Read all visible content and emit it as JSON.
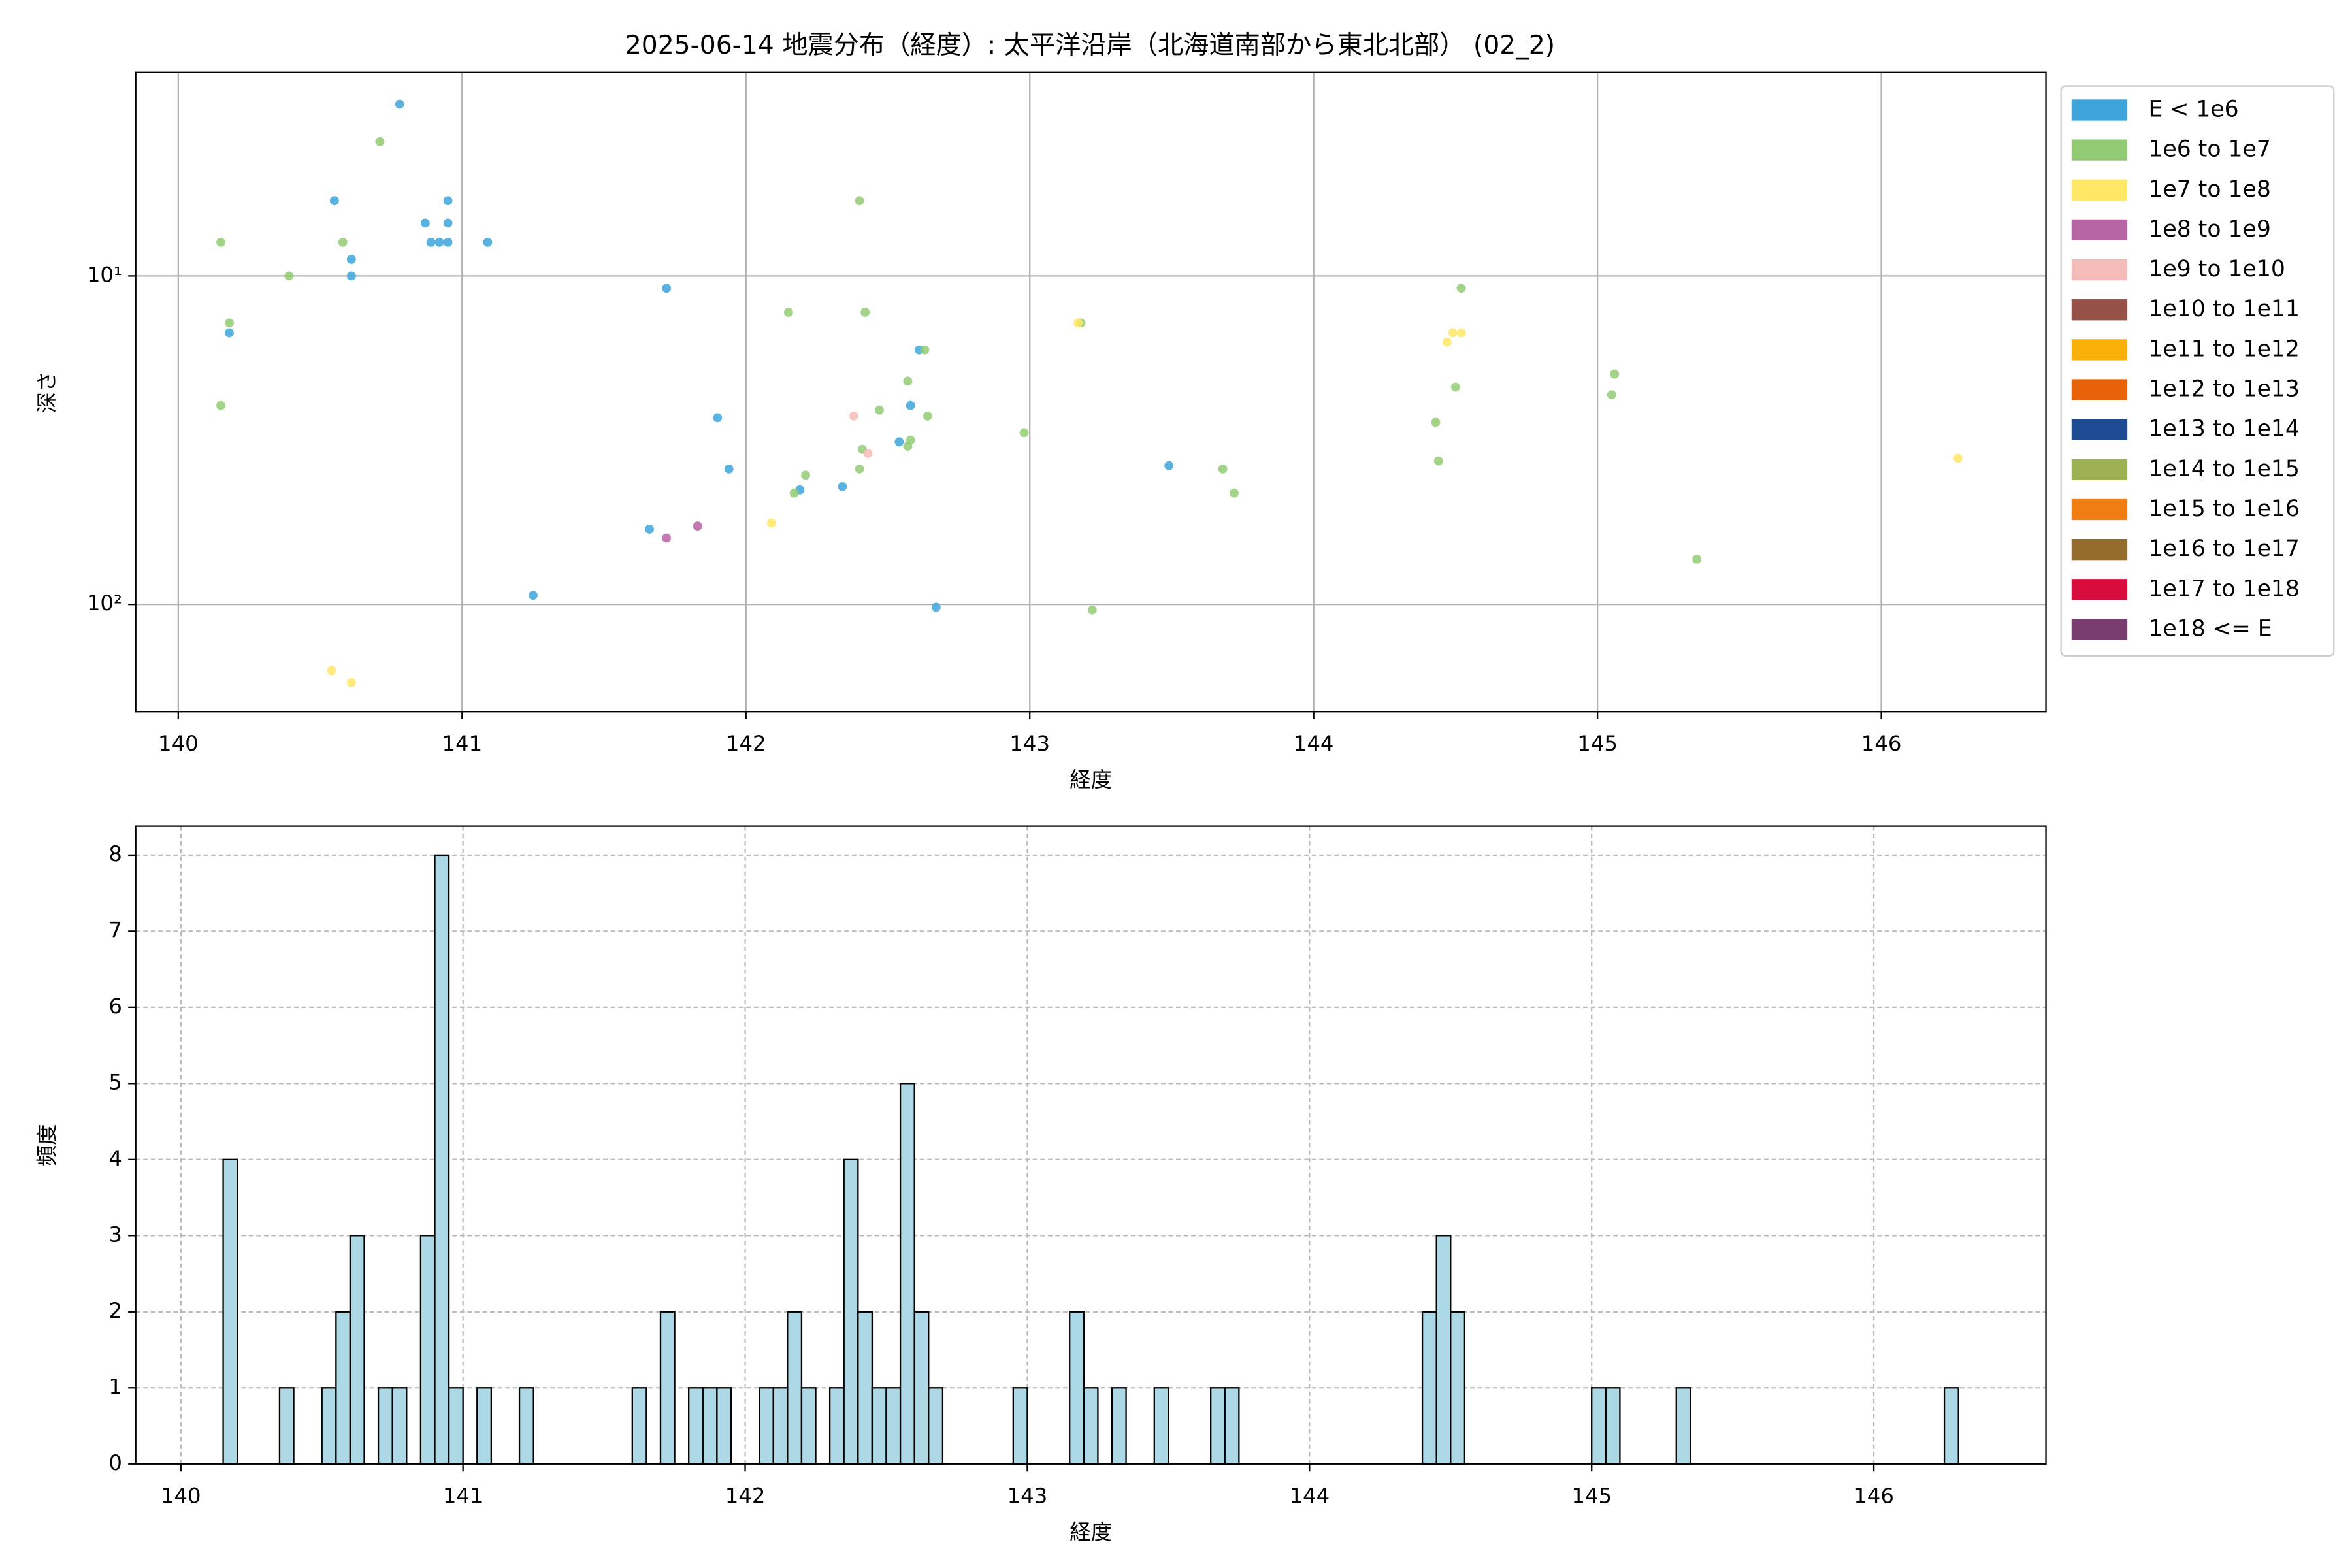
{
  "chart_data": [
    {
      "type": "scatter",
      "title": "2025-06-14 地震分布（経度）: 太平洋沿岸（北海道南部から東北北部） (02_2)",
      "x_label": "経度",
      "y_label": "深さ",
      "xlim": [
        139.85,
        146.58
      ],
      "xticks": [
        140,
        141,
        142,
        143,
        144,
        145,
        146
      ],
      "ylim": [
        2.4,
        212
      ],
      "yscale": "log",
      "y_inverted": true,
      "yticks": [
        {
          "value": 10,
          "label": "10¹"
        },
        {
          "value": 100,
          "label": "10²"
        }
      ],
      "grid": true,
      "grid_style": "solid",
      "legend": "outside-right",
      "series": [
        {
          "name": "E < 1e6",
          "color": "#3da4dc",
          "x": [
            140.78,
            140.55,
            140.87,
            140.89,
            140.92,
            140.95,
            140.95,
            140.95,
            141.09,
            140.61,
            140.61,
            141.72,
            140.18,
            141.9,
            141.94,
            142.58,
            142.61,
            142.54,
            142.19,
            142.34,
            141.66,
            141.25,
            143.49,
            142.67
          ],
          "values": [
            3.0,
            5.9,
            6.9,
            7.9,
            7.9,
            6.9,
            5.9,
            7.9,
            7.9,
            8.9,
            10,
            10.9,
            14.9,
            27,
            38.7,
            24.8,
            16.8,
            32,
            44.8,
            43.8,
            59,
            93.8,
            37.8,
            102
          ]
        },
        {
          "name": "1e6 to 1e7",
          "color": "#93cb74",
          "x": [
            140.71,
            142.4,
            140.15,
            140.58,
            140.39,
            140.18,
            142.15,
            142.42,
            143.18,
            144.52,
            142.63,
            142.57,
            144.5,
            140.15,
            142.64,
            142.47,
            144.43,
            142.98,
            142.41,
            142.58,
            142.57,
            142.4,
            142.21,
            142.17,
            143.68,
            143.72,
            144.44,
            145.06,
            145.05,
            143.22,
            145.35
          ],
          "values": [
            3.9,
            5.9,
            7.9,
            7.9,
            10,
            13.9,
            12.9,
            12.9,
            13.9,
            10.9,
            16.8,
            20.9,
            21.8,
            24.8,
            26.7,
            25.6,
            27.9,
            30,
            33.7,
            31.6,
            33,
            38.7,
            40.4,
            45.8,
            38.7,
            45.8,
            36.6,
            19.9,
            23,
            104,
            72.8
          ]
        },
        {
          "name": "1e7 to 1e8",
          "color": "#ffe866",
          "x": [
            143.17,
            144.47,
            144.49,
            144.52,
            142.09,
            146.27,
            140.54,
            140.61
          ],
          "values": [
            13.9,
            15.9,
            14.9,
            14.9,
            56.5,
            35.9,
            159,
            173
          ]
        },
        {
          "name": "1e8 to 1e9",
          "color": "#b664a4",
          "x": [
            141.72,
            141.83
          ],
          "values": [
            62.8,
            57.7
          ]
        },
        {
          "name": "1e9 to 1e10",
          "color": "#f4bcb9",
          "x": [
            142.38,
            142.43
          ],
          "values": [
            26.7,
            34.7
          ]
        },
        {
          "name": "1e10 to 1e11",
          "color": "#955048",
          "x": [],
          "values": []
        },
        {
          "name": "1e11 to 1e12",
          "color": "#f9b107",
          "x": [],
          "values": []
        },
        {
          "name": "1e12 to 1e13",
          "color": "#e8620a",
          "x": [],
          "values": []
        },
        {
          "name": "1e13 to 1e14",
          "color": "#1d4b93",
          "x": [],
          "values": []
        },
        {
          "name": "1e14 to 1e15",
          "color": "#9bb051",
          "x": [],
          "values": []
        },
        {
          "name": "1e15 to 1e16",
          "color": "#ef7d12",
          "x": [],
          "values": []
        },
        {
          "name": "1e16 to 1e17",
          "color": "#946c2c",
          "x": [],
          "values": []
        },
        {
          "name": "1e17 to 1e18",
          "color": "#d90c3e",
          "x": [],
          "values": []
        },
        {
          "name": "1e18 <= E",
          "color": "#7a3d6f",
          "x": [],
          "values": []
        }
      ]
    },
    {
      "type": "histogram",
      "x_label": "経度",
      "y_label": "頻度",
      "xlim": [
        139.84,
        146.61
      ],
      "xticks": [
        140,
        141,
        142,
        143,
        144,
        145,
        146
      ],
      "ylim": [
        0,
        8.38
      ],
      "yticks": [
        0,
        1,
        2,
        3,
        4,
        5,
        6,
        7,
        8
      ],
      "grid": true,
      "grid_style": "dashed",
      "color": "#add8e6",
      "edgecolor": "#000000",
      "bins": [
        140.15,
        140.2,
        140.25,
        140.3,
        140.35,
        140.4,
        140.45,
        140.5,
        140.55,
        140.6,
        140.65,
        140.7,
        140.75,
        140.8,
        140.85,
        140.9,
        140.95,
        141,
        141.05,
        141.1,
        141.15,
        141.2,
        141.25,
        141.3,
        141.35,
        141.4,
        141.45,
        141.5,
        141.55,
        141.6,
        141.65,
        141.7,
        141.75,
        141.8,
        141.85,
        141.9,
        141.95,
        142,
        142.05,
        142.1,
        142.15,
        142.2,
        142.25,
        142.3,
        142.35,
        142.4,
        142.45,
        142.5,
        142.55,
        142.6,
        142.65,
        142.7,
        142.75,
        142.8,
        142.85,
        142.9,
        142.95,
        143,
        143.05,
        143.1,
        143.15,
        143.2,
        143.25,
        143.3,
        143.35,
        143.4,
        143.45,
        143.5,
        143.55,
        143.6,
        143.65,
        143.7,
        143.75,
        143.8,
        143.85,
        143.9,
        143.95,
        144,
        144.05,
        144.1,
        144.15,
        144.2,
        144.25,
        144.3,
        144.35,
        144.4,
        144.45,
        144.5,
        144.55,
        144.6,
        144.65,
        144.7,
        144.75,
        144.8,
        144.85,
        144.9,
        144.95,
        145,
        145.05,
        145.1,
        145.15,
        145.2,
        145.25,
        145.3,
        145.35,
        145.4,
        145.45,
        145.5,
        145.55,
        145.6,
        145.65,
        145.7,
        145.75,
        145.8,
        145.85,
        145.9,
        145.95,
        146,
        146.05,
        146.1,
        146.15,
        146.2,
        146.25,
        146.3
      ],
      "values": [
        4,
        0,
        0,
        0,
        1,
        0,
        0,
        1,
        2,
        3,
        0,
        1,
        1,
        0,
        3,
        8,
        1,
        0,
        1,
        0,
        0,
        1,
        0,
        0,
        0,
        0,
        0,
        0,
        0,
        1,
        0,
        2,
        0,
        1,
        1,
        1,
        0,
        0,
        1,
        1,
        2,
        1,
        0,
        1,
        4,
        2,
        1,
        1,
        5,
        2,
        1,
        0,
        0,
        0,
        0,
        0,
        1,
        0,
        0,
        0,
        2,
        1,
        0,
        1,
        0,
        0,
        1,
        0,
        0,
        0,
        1,
        1,
        0,
        0,
        0,
        0,
        0,
        0,
        0,
        0,
        0,
        0,
        0,
        0,
        0,
        2,
        3,
        2,
        0,
        0,
        0,
        0,
        0,
        0,
        0,
        0,
        0,
        1,
        1,
        0,
        0,
        0,
        0,
        1,
        0,
        0,
        0,
        0,
        0,
        0,
        0,
        0,
        0,
        0,
        0,
        0,
        0,
        0,
        0,
        0,
        0,
        0,
        1
      ]
    }
  ]
}
